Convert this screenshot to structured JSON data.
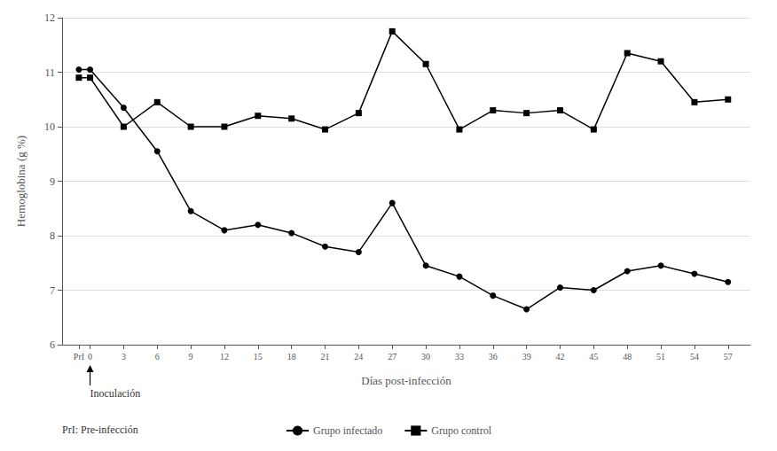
{
  "chart_data": {
    "type": "line",
    "xlabel": "Días post-infección",
    "ylabel": "Hemoglobina (g %)",
    "x": [
      -1,
      0,
      3,
      6,
      9,
      12,
      15,
      18,
      21,
      24,
      27,
      30,
      33,
      36,
      39,
      42,
      45,
      48,
      51,
      54,
      57
    ],
    "series": [
      {
        "name": "Grupo infectado",
        "color": "#000000",
        "marker": "circle",
        "values": [
          11.05,
          11.05,
          10.35,
          9.55,
          8.45,
          8.1,
          8.2,
          8.05,
          7.8,
          7.7,
          8.6,
          7.45,
          7.25,
          6.9,
          6.65,
          7.05,
          7.0,
          7.35,
          7.45,
          7.3,
          7.15
        ]
      },
      {
        "name": "Grupo control",
        "color": "#000000",
        "marker": "square",
        "values": [
          10.9,
          10.9,
          10.0,
          10.45,
          10.0,
          10.0,
          10.2,
          10.15,
          9.95,
          10.25,
          11.75,
          11.15,
          9.95,
          10.3,
          10.25,
          10.3,
          9.95,
          11.35,
          11.2,
          10.45,
          10.5
        ]
      }
    ],
    "xlim": [
      -2.5,
      59
    ],
    "xticks": [
      {
        "value": -1,
        "label": "PrI"
      },
      0,
      3,
      6,
      9,
      12,
      15,
      18,
      21,
      24,
      27,
      30,
      33,
      36,
      39,
      42,
      45,
      48,
      51,
      54,
      57
    ],
    "ylim": [
      6,
      12
    ],
    "yticks": [
      6,
      7,
      8,
      9,
      10,
      11,
      12
    ],
    "grid": true,
    "legend": "bottom",
    "annotations": [
      {
        "text": "Inoculación",
        "x": 0,
        "y": 6
      },
      {
        "text": "PrI: Pre-infección"
      }
    ]
  }
}
